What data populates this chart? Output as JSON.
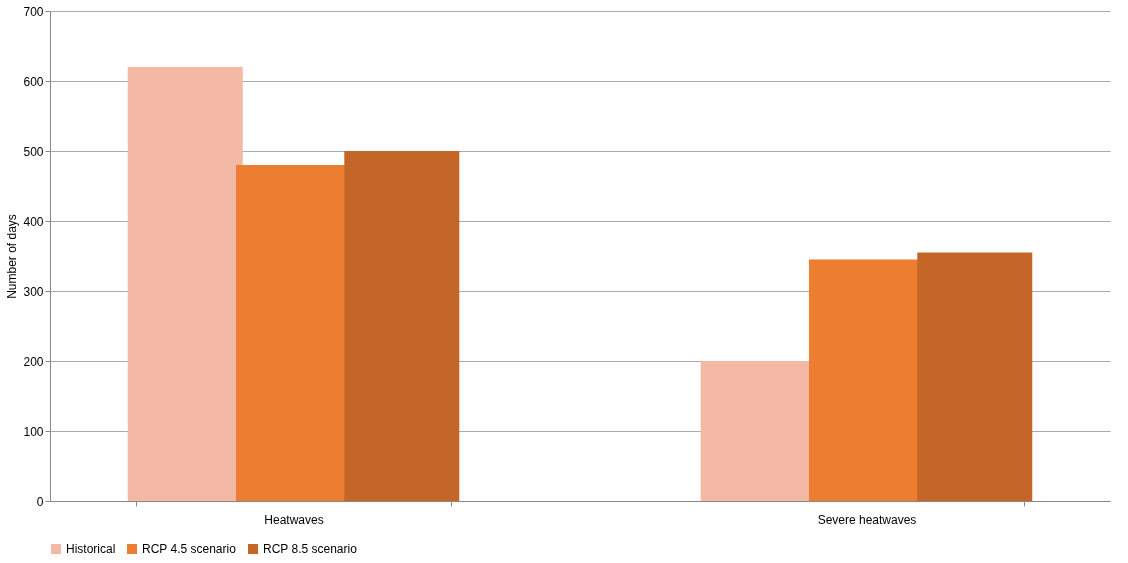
{
  "chart_data": {
    "type": "bar",
    "ylabel": "Number of days",
    "categories": [
      "Heatwaves",
      "Severe heatwaves"
    ],
    "series": [
      {
        "name": "Historical",
        "color": "#f4b9a5",
        "values": [
          620,
          200
        ]
      },
      {
        "name": "RCP 4.5 scenario",
        "color": "#ed7d31",
        "values": [
          480,
          345
        ]
      },
      {
        "name": "RCP 8.5 scenario",
        "color": "#c46628",
        "values": [
          500,
          355
        ]
      }
    ],
    "ylim": [
      0,
      700
    ],
    "yticks": [
      0,
      100,
      200,
      300,
      400,
      500,
      600,
      700
    ],
    "grid": "y",
    "legend": "bottom"
  }
}
